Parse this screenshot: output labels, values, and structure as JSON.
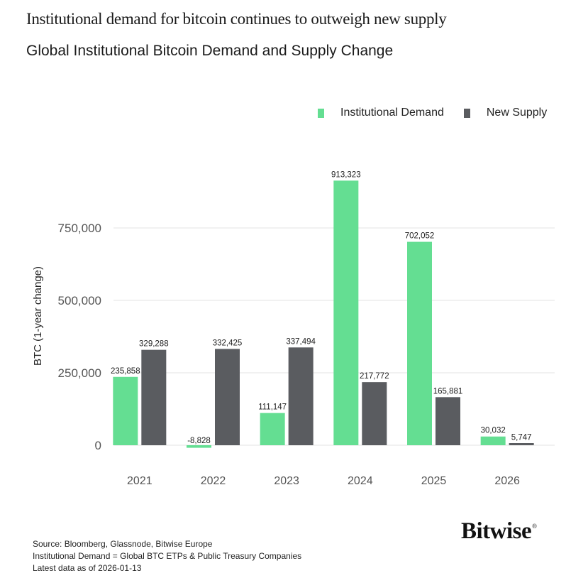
{
  "headline": "Institutional demand for bitcoin continues to outweigh new supply",
  "subtitle": "Global Institutional Bitcoin Demand and Supply Change",
  "colors": {
    "demand": "#64de92",
    "supply": "#5a5c60",
    "grid": "#e3e3e3",
    "axis_text": "#555555"
  },
  "legend": [
    {
      "label": "Institutional Demand",
      "color": "#64de92"
    },
    {
      "label": "New Supply",
      "color": "#5a5c60"
    }
  ],
  "chart_data": {
    "type": "bar",
    "title": "Global Institutional Bitcoin Demand and Supply Change",
    "xlabel": "",
    "ylabel": "BTC (1-year change)",
    "categories": [
      "2021",
      "2022",
      "2023",
      "2024",
      "2025",
      "2026"
    ],
    "series": [
      {
        "name": "Institutional Demand",
        "values": [
          235858,
          -8828,
          111147,
          913323,
          702052,
          30032
        ],
        "labels": [
          "235,858",
          "-8,828",
          "111,147",
          "913,323",
          "702,052",
          "30,032"
        ]
      },
      {
        "name": "New Supply",
        "values": [
          329288,
          332425,
          337494,
          217772,
          165881,
          5747
        ],
        "labels": [
          "329,288",
          "332,425",
          "337,494",
          "217,772",
          "165,881",
          "5,747"
        ]
      }
    ],
    "yticks": [
      0,
      250000,
      500000,
      750000
    ],
    "ytick_labels": [
      "0",
      "250,000",
      "500,000",
      "750,000"
    ],
    "ylim": [
      -20000,
      950000
    ],
    "grid": true,
    "legend_position": "top-right"
  },
  "footer": {
    "source": "Source: Bloomberg, Glassnode, Bitwise Europe",
    "definition": "Institutional Demand = Global BTC ETPs & Public Treasury Companies",
    "as_of": "Latest data as of 2026-01-13"
  },
  "logo": {
    "text": "Bitwise",
    "mark": "®"
  }
}
